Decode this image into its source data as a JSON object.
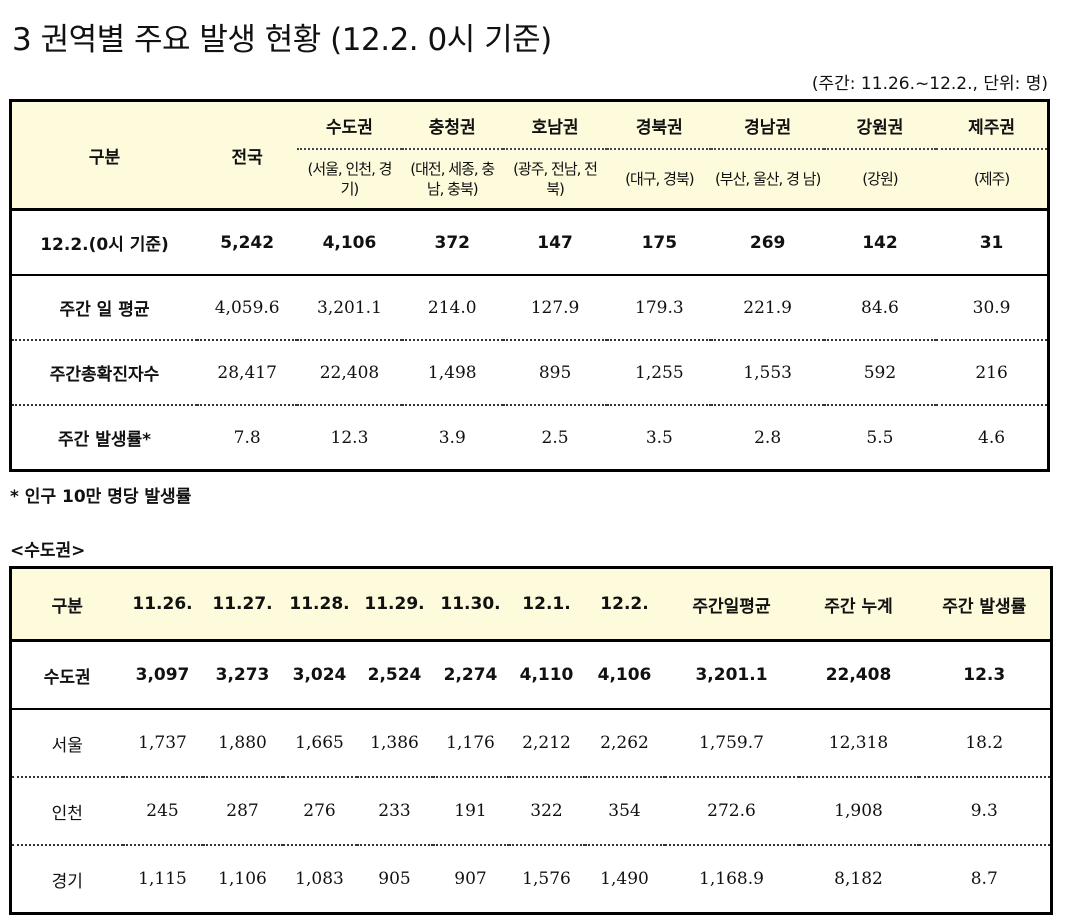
{
  "title": "3  권역별 주요 발생 현황 (12.2. 0시 기준)",
  "period_note": "(주간: 11.26.~12.2., 단위: 명)",
  "table1": {
    "corner": "구분",
    "national": "전국",
    "regions": [
      {
        "name": "수도권",
        "sub": "(서울, 인천, 경 기)"
      },
      {
        "name": "충청권",
        "sub": "(대전, 세종, 충 남, 충북)"
      },
      {
        "name": "호남권",
        "sub": "(광주, 전남, 전 북)"
      },
      {
        "name": "경북권",
        "sub": "(대구, 경북)"
      },
      {
        "name": "경남권",
        "sub": "(부산, 울산, 경 남)"
      },
      {
        "name": "강원권",
        "sub": "(강원)"
      },
      {
        "name": "제주권",
        "sub": "(제주)"
      }
    ],
    "rows": [
      {
        "label": "12.2.(0시 기준)",
        "values": [
          "5,242",
          "4,106",
          "372",
          "147",
          "175",
          "269",
          "142",
          "31"
        ]
      },
      {
        "label": "주간 일 평균",
        "values": [
          "4,059.6",
          "3,201.1",
          "214.0",
          "127.9",
          "179.3",
          "221.9",
          "84.6",
          "30.9"
        ]
      },
      {
        "label": "주간총확진자수",
        "values": [
          "28,417",
          "22,408",
          "1,498",
          "895",
          "1,255",
          "1,553",
          "592",
          "216"
        ]
      },
      {
        "label": "주간 발생률*",
        "values": [
          "7.8",
          "12.3",
          "3.9",
          "2.5",
          "3.5",
          "2.8",
          "5.5",
          "4.6"
        ]
      }
    ]
  },
  "footnote": "* 인구 10만 명당 발생률",
  "subtitle": "<수도권>",
  "table2": {
    "headers": [
      "구분",
      "11.26.",
      "11.27.",
      "11.28.",
      "11.29.",
      "11.30.",
      "12.1.",
      "12.2.",
      "주간일평균",
      "주간 누계",
      "주간 발생률"
    ],
    "rows": [
      {
        "label": "수도권",
        "values": [
          "3,097",
          "3,273",
          "3,024",
          "2,524",
          "2,274",
          "4,110",
          "4,106",
          "3,201.1",
          "22,408",
          "12.3"
        ]
      },
      {
        "label": "서울",
        "values": [
          "1,737",
          "1,880",
          "1,665",
          "1,386",
          "1,176",
          "2,212",
          "2,262",
          "1,759.7",
          "12,318",
          "18.2"
        ]
      },
      {
        "label": "인천",
        "values": [
          "245",
          "287",
          "276",
          "233",
          "191",
          "322",
          "354",
          "272.6",
          "1,908",
          "9.3"
        ]
      },
      {
        "label": "경기",
        "values": [
          "1,115",
          "1,106",
          "1,083",
          "905",
          "907",
          "1,576",
          "1,490",
          "1,168.9",
          "8,182",
          "8.7"
        ]
      }
    ]
  }
}
